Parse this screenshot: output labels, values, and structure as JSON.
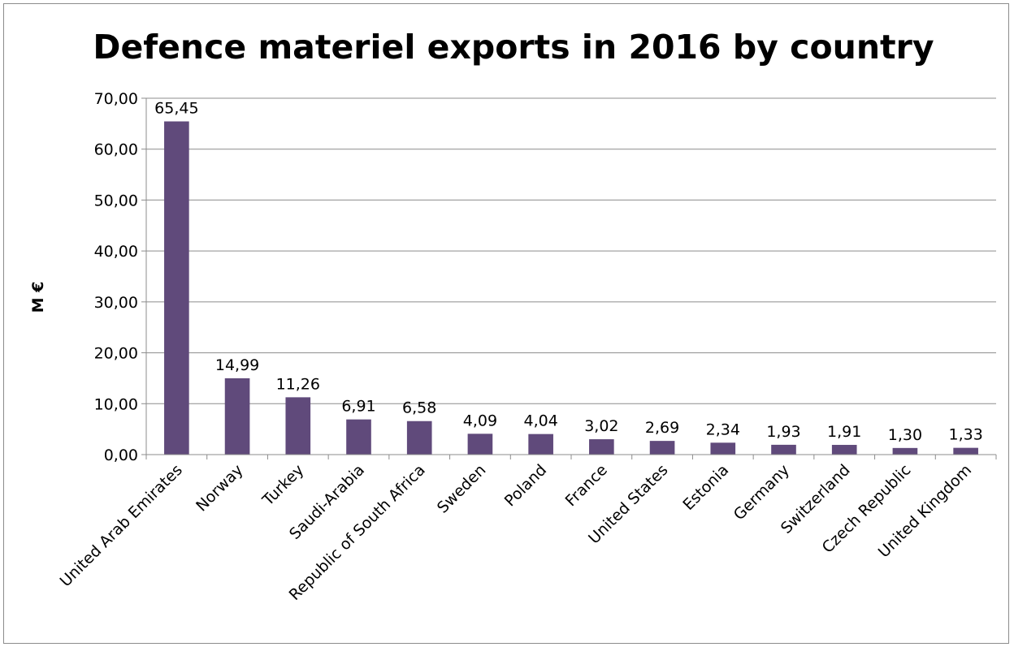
{
  "chart_data": {
    "type": "bar",
    "title": "Defence materiel exports in 2016 by country",
    "ylabel": "M €",
    "xlabel": "",
    "ylim": [
      0,
      70
    ],
    "yticks": [
      "0,00",
      "10,00",
      "20,00",
      "30,00",
      "40,00",
      "50,00",
      "60,00",
      "70,00"
    ],
    "grid": true,
    "bar_color": "#604a7b",
    "categories": [
      "United Arab Emirates",
      "Norway",
      "Turkey",
      "Saudi-Arabia",
      "Republic of South Africa",
      "Sweden",
      "Poland",
      "France",
      "United States",
      "Estonia",
      "Germany",
      "Switzerland",
      "Czech Republic",
      "United Kingdom"
    ],
    "values": [
      65.45,
      14.99,
      11.26,
      6.91,
      6.58,
      4.09,
      4.04,
      3.02,
      2.69,
      2.34,
      1.93,
      1.91,
      1.3,
      1.33
    ],
    "data_labels": [
      "65,45",
      "14,99",
      "11,26",
      "6,91",
      "6,58",
      "4,09",
      "4,04",
      "3,02",
      "2,69",
      "2,34",
      "1,93",
      "1,91",
      "1,30",
      "1,33"
    ]
  }
}
